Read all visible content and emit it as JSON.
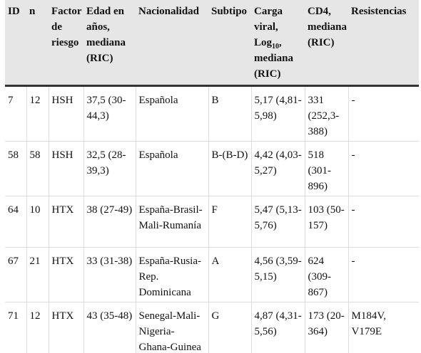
{
  "table": {
    "header": [
      "ID",
      "n",
      "Factor de riesgo",
      "Edad en años, mediana (RIC)",
      "Nacionalidad",
      "Subtipo",
      {
        "text": "Carga viral, Log",
        "sub": "10",
        "tail": ", mediana (RIC)"
      },
      "CD4, mediana (RIC)",
      "Resistencias"
    ],
    "rows": [
      [
        "7",
        "12",
        "HSH",
        "37,5 (30-44,3)",
        "Española",
        "B",
        "5,17 (4,81-5,98)",
        "331 (252,3-388)",
        "-"
      ],
      [
        "58",
        "58",
        "HSH",
        "32,5 (28-39,3)",
        "Española",
        "B-(B-D)",
        "4,42 (4,03-5,27)",
        "518 (301-896)",
        "-"
      ],
      [
        "64",
        "10",
        "HTX",
        "38 (27-49)",
        "España-Brasil-Mali-Rumanía",
        "F",
        "5,47 (5,13-5,76)",
        "103 (50-157)",
        "-"
      ],
      [
        "67",
        "21",
        "HTX",
        "33 (31-38)",
        "España-Rusia-Rep. Dominicana",
        "A",
        "4,56 (3,59-5,15)",
        "624 (309-867)",
        "-"
      ],
      [
        "71",
        "12",
        "HTX",
        "43 (35-48)",
        "Senegal-Mali-Nigeria-Ghana-Guinea",
        "G",
        "4,87 (4,31-5,56)",
        "173 (20-364)",
        "M184V, V179E"
      ]
    ]
  }
}
